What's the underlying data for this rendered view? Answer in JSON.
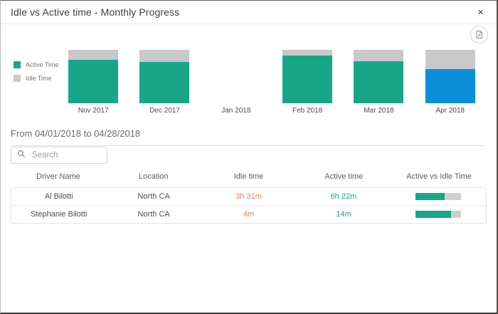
{
  "window": {
    "title": "Idle vs Active time - Monthly Progress",
    "close_icon": "×"
  },
  "toolbar": {
    "export_icon": "export-report-circle-button"
  },
  "chart_data": {
    "type": "bar",
    "stacked": true,
    "title": "Idle vs Active time - Monthly Progress",
    "categories": [
      "Nov 2017",
      "Dec 2017",
      "Jan 2018",
      "Feb 2018",
      "Mar 2018",
      "Apr 2018"
    ],
    "series": [
      {
        "name": "Active Time",
        "values": [
          82,
          78,
          0,
          89,
          79,
          64
        ]
      },
      {
        "name": "Idle Time",
        "values": [
          18,
          22,
          0,
          11,
          21,
          36
        ]
      }
    ],
    "unit": "percent of month total time",
    "legend_position": "left",
    "grid": false,
    "selected_index": 5,
    "colors": {
      "active": "#18a689",
      "idle": "#c9c9c9",
      "active_selected": "#0b8fd8"
    },
    "months": [
      {
        "label": "Nov 2017",
        "has_data": true,
        "active_pct": 82,
        "idle_pct": 18,
        "selected": false
      },
      {
        "label": "Dec 2017",
        "has_data": true,
        "active_pct": 78,
        "idle_pct": 22,
        "selected": false
      },
      {
        "label": "Jan 2018",
        "has_data": false,
        "active_pct": 0,
        "idle_pct": 0,
        "selected": false
      },
      {
        "label": "Feb 2018",
        "has_data": true,
        "active_pct": 89,
        "idle_pct": 11,
        "selected": false
      },
      {
        "label": "Mar 2018",
        "has_data": true,
        "active_pct": 79,
        "idle_pct": 21,
        "selected": false
      },
      {
        "label": "Apr 2018",
        "has_data": true,
        "active_pct": 64,
        "idle_pct": 36,
        "selected": true
      }
    ]
  },
  "filter": {
    "date_range_label": "From 04/01/2018 to 04/28/2018"
  },
  "search": {
    "placeholder": "Search",
    "icon": "magnifier"
  },
  "table": {
    "headers": [
      "Driver Name",
      "Location",
      "Idle time",
      "Active time",
      "Active vs Idle Time"
    ],
    "rows": [
      {
        "driver": "Al Bilotti",
        "location": "North CA",
        "idle": "3h 31m",
        "active": "6h 22m",
        "active_ratio_pct": 64
      },
      {
        "driver": "Stephanie Bilotti",
        "location": "North CA",
        "idle": "4m",
        "active": "14m",
        "active_ratio_pct": 78
      }
    ]
  }
}
